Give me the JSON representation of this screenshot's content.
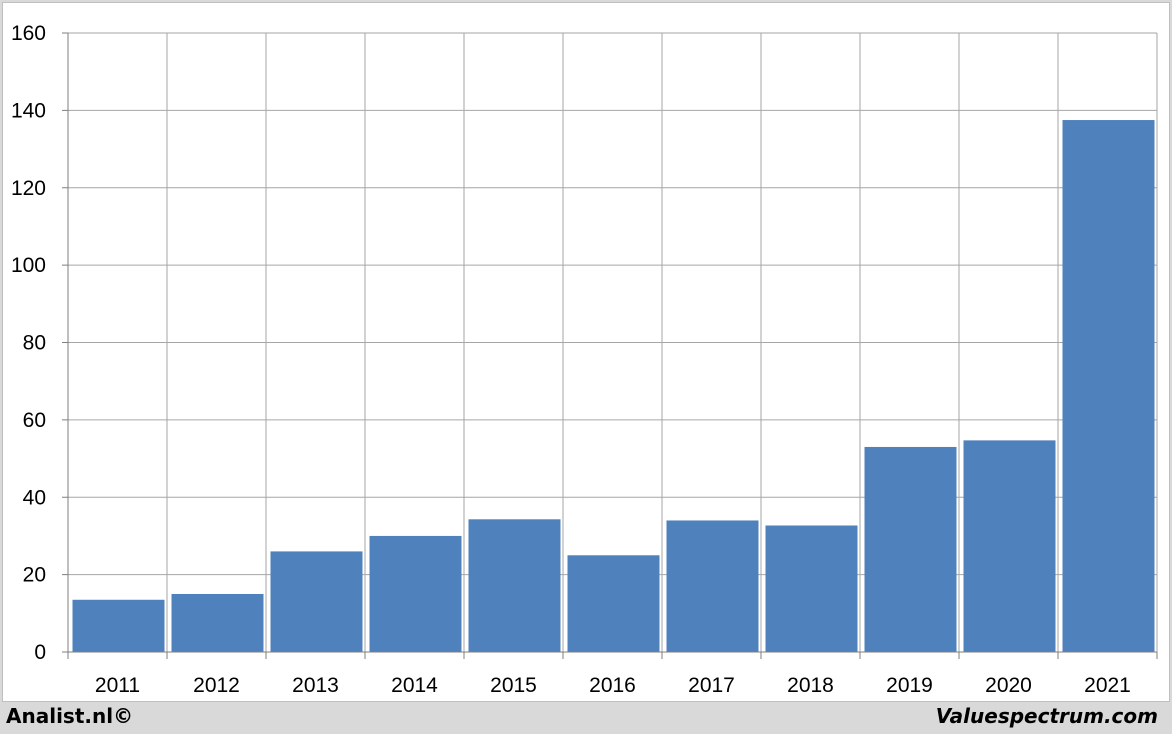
{
  "chart_data": {
    "type": "bar",
    "categories": [
      "2011",
      "2012",
      "2013",
      "2014",
      "2015",
      "2016",
      "2017",
      "2018",
      "2019",
      "2020",
      "2021"
    ],
    "values": [
      13.5,
      15,
      26,
      30,
      34.3,
      25,
      34,
      32.7,
      53,
      54.7,
      137.5
    ],
    "title": "",
    "xlabel": "",
    "ylabel": "",
    "ylim": [
      0,
      160
    ],
    "yticks": [
      0,
      20,
      40,
      60,
      80,
      100,
      120,
      140,
      160
    ],
    "grid": true,
    "legend": "none",
    "bar_color": "#4f81bd",
    "grid_color": "#a6a6a6"
  },
  "footer": {
    "left": "Analist.nl©",
    "right": "Valuespectrum.com"
  }
}
